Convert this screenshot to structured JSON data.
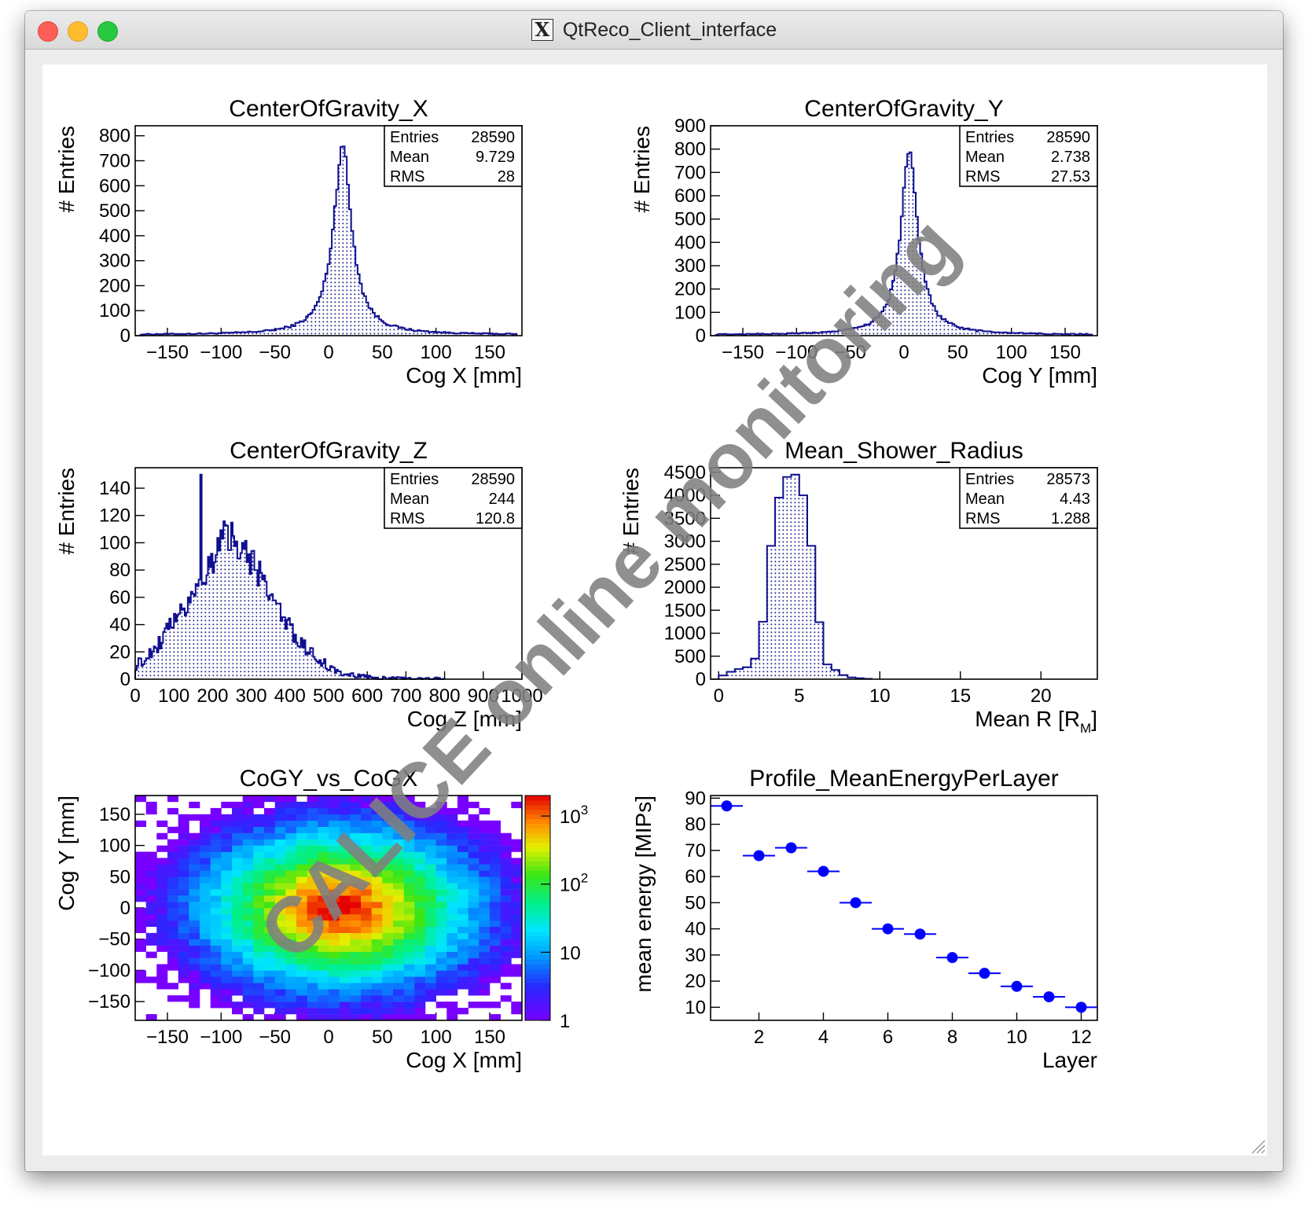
{
  "window": {
    "title": "QtReco_Client_interface",
    "x_icon": "x11-icon"
  },
  "watermark": "CALICE online monitoring",
  "chart_data": [
    {
      "id": "cogx",
      "type": "bar",
      "subtype": "histogram",
      "title": "CenterOfGravity_X",
      "xlabel": "Cog X [mm]",
      "ylabel": "# Entries",
      "xlim": [
        -180,
        180
      ],
      "ylim": [
        0,
        840
      ],
      "xticks": [
        -150,
        -100,
        -50,
        0,
        50,
        100,
        150
      ],
      "xtick_labels": [
        "−150",
        "−100",
        "−50",
        "0",
        "50",
        "100",
        "150"
      ],
      "yticks": [
        0,
        100,
        200,
        300,
        400,
        500,
        600,
        700,
        800
      ],
      "stats": {
        "entries_label": "Entries",
        "entries": "28590",
        "mean_label": "Mean",
        "mean": "9.729",
        "rms_label": "RMS",
        "rms": "28"
      },
      "peak_x": 13,
      "peak_y": 815,
      "width": 11
    },
    {
      "id": "cogy",
      "type": "bar",
      "subtype": "histogram",
      "title": "CenterOfGravity_Y",
      "xlabel": "Cog Y [mm]",
      "ylabel": "# Entries",
      "xlim": [
        -180,
        180
      ],
      "ylim": [
        0,
        900
      ],
      "xticks": [
        -150,
        -100,
        -50,
        0,
        50,
        100,
        150
      ],
      "xtick_labels": [
        "−150",
        "−100",
        "−50",
        "0",
        "50",
        "100",
        "150"
      ],
      "yticks": [
        0,
        100,
        200,
        300,
        400,
        500,
        600,
        700,
        800,
        900
      ],
      "stats": {
        "entries_label": "Entries",
        "entries": "28590",
        "mean_label": "Mean",
        "mean": "2.738",
        "rms_label": "RMS",
        "rms": "27.53"
      },
      "peak_x": 5,
      "peak_y": 860,
      "width": 10
    },
    {
      "id": "cogz",
      "type": "bar",
      "subtype": "histogram",
      "title": "CenterOfGravity_Z",
      "xlabel": "Cog Z [mm]",
      "ylabel": "# Entries",
      "xlim": [
        0,
        1000
      ],
      "ylim": [
        0,
        155
      ],
      "xticks": [
        0,
        100,
        200,
        300,
        400,
        500,
        600,
        700,
        800,
        900,
        1000
      ],
      "xtick_labels": [
        "0",
        "100",
        "200",
        "300",
        "400",
        "500",
        "600",
        "700",
        "800",
        "900",
        "1000"
      ],
      "yticks": [
        0,
        20,
        40,
        60,
        80,
        100,
        120,
        140
      ],
      "stats": {
        "entries_label": "Entries",
        "entries": "28590",
        "mean_label": "Mean",
        "mean": "244",
        "rms_label": "RMS",
        "rms": "120.8"
      },
      "peak_x": 200,
      "peak_y": 150
    },
    {
      "id": "radius",
      "type": "bar",
      "subtype": "histogram",
      "title": "Mean_Shower_Radius",
      "xlabel": "Mean R [R",
      "xlabel_sub": "M",
      "xlabel_end": "]",
      "ylabel": "# Entries",
      "xlim": [
        -0.5,
        23.5
      ],
      "ylim": [
        0,
        4600
      ],
      "xticks": [
        0,
        5,
        10,
        15,
        20
      ],
      "xtick_labels": [
        "0",
        "5",
        "10",
        "15",
        "20"
      ],
      "yticks": [
        0,
        500,
        1000,
        1500,
        2000,
        2500,
        3000,
        3500,
        4000,
        4500
      ],
      "ytick_labels": [
        "0",
        "500",
        "1000",
        "1500",
        "2000",
        "2500",
        "3000",
        "3500",
        "4000",
        "4500"
      ],
      "stats": {
        "entries_label": "Entries",
        "entries": "28573",
        "mean_label": "Mean",
        "mean": "4.43",
        "rms_label": "RMS",
        "rms": "1.288"
      },
      "bins": [
        [
          0,
          0.5,
          80
        ],
        [
          0.5,
          1,
          160
        ],
        [
          1,
          1.5,
          220
        ],
        [
          1.5,
          2,
          260
        ],
        [
          2,
          2.5,
          450
        ],
        [
          2.5,
          3,
          1250
        ],
        [
          3,
          3.5,
          2900
        ],
        [
          3.5,
          4,
          3950
        ],
        [
          4,
          4.5,
          4400
        ],
        [
          4.5,
          5,
          4450
        ],
        [
          5,
          5.5,
          4000
        ],
        [
          5.5,
          6,
          2900
        ],
        [
          6,
          6.5,
          1240
        ],
        [
          6.5,
          7,
          320
        ],
        [
          7,
          7.5,
          200
        ],
        [
          7.5,
          8,
          90
        ],
        [
          8,
          8.5,
          40
        ],
        [
          8.5,
          9,
          20
        ],
        [
          9,
          9.5,
          8
        ]
      ]
    },
    {
      "id": "cog2d",
      "type": "heatmap",
      "title": "CoGY_vs_CoGX",
      "xlabel": "Cog X [mm]",
      "ylabel": "Cog Y [mm]",
      "xlim": [
        -180,
        180
      ],
      "ylim": [
        -180,
        180
      ],
      "xticks": [
        -150,
        -100,
        -50,
        0,
        50,
        100,
        150
      ],
      "xtick_labels": [
        "−150",
        "−100",
        "−50",
        "0",
        "50",
        "100",
        "150"
      ],
      "yticks": [
        -150,
        -100,
        -50,
        0,
        50,
        100,
        150
      ],
      "ytick_labels": [
        "−150",
        "−100",
        "−50",
        "0",
        "50",
        "100",
        "150"
      ],
      "zscale": "log",
      "zlim": [
        1,
        2000
      ],
      "colorbar_labels": [
        "1",
        "10",
        "10",
        "10"
      ],
      "colorbar_exps": [
        "",
        "",
        "2",
        "3"
      ],
      "center": [
        10,
        0
      ],
      "peak": 2000
    },
    {
      "id": "profile",
      "type": "scatter",
      "subtype": "profile",
      "title": "Profile_MeanEnergyPerLayer",
      "xlabel": "Layer",
      "ylabel": "mean energy [MIPs]",
      "xlim": [
        0.5,
        12.5
      ],
      "ylim": [
        5,
        91
      ],
      "xticks": [
        2,
        4,
        6,
        8,
        10,
        12
      ],
      "yticks": [
        10,
        20,
        30,
        40,
        50,
        60,
        70,
        80,
        90
      ],
      "x": [
        1,
        2,
        3,
        4,
        5,
        6,
        7,
        8,
        9,
        10,
        11,
        12
      ],
      "y": [
        87,
        68,
        71,
        62,
        50,
        40,
        38,
        29,
        23,
        18,
        14,
        10
      ]
    }
  ]
}
